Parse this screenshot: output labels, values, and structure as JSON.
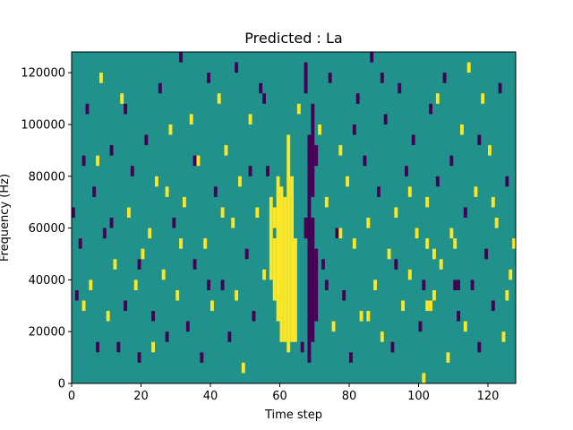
{
  "chart_data": {
    "type": "heatmap",
    "title": "Predicted : La",
    "xlabel": "Time step",
    "ylabel": "Frequency (Hz)",
    "xlim": [
      0,
      128
    ],
    "ylim": [
      0,
      128000
    ],
    "x_ticks": [
      0,
      20,
      40,
      60,
      80,
      100,
      120
    ],
    "x_tick_labels": [
      "0",
      "20",
      "40",
      "60",
      "80",
      "100",
      "120"
    ],
    "y_ticks": [
      0,
      20000,
      40000,
      60000,
      80000,
      100000,
      120000
    ],
    "y_tick_labels": [
      "0",
      "20000",
      "40000",
      "60000",
      "80000",
      "100000",
      "120000"
    ],
    "grid": false,
    "legend": "none",
    "colors": {
      "background": "#21918c",
      "high": "#fde725",
      "low": "#440154"
    },
    "columns": [
      {
        "t": 60,
        "level": "high",
        "runs": [
          [
            4,
            19
          ]
        ]
      },
      {
        "t": 61,
        "level": "high",
        "runs": [
          [
            4,
            18
          ]
        ]
      },
      {
        "t": 62,
        "level": "high",
        "runs": [
          [
            3,
            22
          ],
          [
            22,
            24
          ]
        ]
      },
      {
        "t": 63,
        "level": "high",
        "runs": [
          [
            4,
            20
          ]
        ]
      },
      {
        "t": 59,
        "level": "high",
        "runs": [
          [
            6,
            20
          ]
        ]
      },
      {
        "t": 58,
        "level": "high",
        "runs": [
          [
            8,
            14
          ],
          [
            15,
            17
          ]
        ]
      },
      {
        "t": 57,
        "level": "high",
        "runs": [
          [
            10,
            18
          ]
        ]
      },
      {
        "t": 64,
        "level": "high",
        "runs": [
          [
            4,
            14
          ]
        ]
      },
      {
        "t": 68,
        "level": "low",
        "runs": [
          [
            2,
            24
          ]
        ]
      },
      {
        "t": 69,
        "level": "low",
        "runs": [
          [
            4,
            16
          ],
          [
            18,
            27
          ]
        ]
      },
      {
        "t": 70,
        "level": "low",
        "runs": [
          [
            6,
            13
          ],
          [
            21,
            23
          ]
        ]
      },
      {
        "t": 67,
        "level": "low",
        "runs": [
          [
            14,
            16
          ],
          [
            28,
            31
          ]
        ]
      }
    ],
    "cells": [
      {
        "t": 1,
        "f": 8,
        "level": "low"
      },
      {
        "t": 2,
        "f": 13,
        "level": "low"
      },
      {
        "t": 3,
        "f": 21,
        "level": "low"
      },
      {
        "t": 4,
        "f": 26,
        "level": "low"
      },
      {
        "t": 5,
        "f": 9,
        "level": "high"
      },
      {
        "t": 6,
        "f": 18,
        "level": "low"
      },
      {
        "t": 7,
        "f": 3,
        "level": "low"
      },
      {
        "t": 8,
        "f": 29,
        "level": "high"
      },
      {
        "t": 9,
        "f": 14,
        "level": "low"
      },
      {
        "t": 10,
        "f": 6,
        "level": "high"
      },
      {
        "t": 11,
        "f": 22,
        "level": "low"
      },
      {
        "t": 12,
        "f": 11,
        "level": "high"
      },
      {
        "t": 13,
        "f": 3,
        "level": "low"
      },
      {
        "t": 14,
        "f": 27,
        "level": "high"
      },
      {
        "t": 15,
        "f": 7,
        "level": "low"
      },
      {
        "t": 16,
        "f": 16,
        "level": "high"
      },
      {
        "t": 17,
        "f": 20,
        "level": "low"
      },
      {
        "t": 18,
        "f": 9,
        "level": "high"
      },
      {
        "t": 19,
        "f": 2,
        "level": "low"
      },
      {
        "t": 20,
        "f": 12,
        "level": "high"
      },
      {
        "t": 21,
        "f": 23,
        "level": "low"
      },
      {
        "t": 22,
        "f": 14,
        "level": "high"
      },
      {
        "t": 23,
        "f": 6,
        "level": "low"
      },
      {
        "t": 24,
        "f": 19,
        "level": "high"
      },
      {
        "t": 25,
        "f": 28,
        "level": "low"
      },
      {
        "t": 26,
        "f": 10,
        "level": "high"
      },
      {
        "t": 27,
        "f": 4,
        "level": "low"
      },
      {
        "t": 28,
        "f": 24,
        "level": "high"
      },
      {
        "t": 29,
        "f": 15,
        "level": "low"
      },
      {
        "t": 30,
        "f": 8,
        "level": "high"
      },
      {
        "t": 31,
        "f": 31,
        "level": "low"
      },
      {
        "t": 32,
        "f": 17,
        "level": "high"
      },
      {
        "t": 33,
        "f": 5,
        "level": "low"
      },
      {
        "t": 34,
        "f": 25,
        "level": "high"
      },
      {
        "t": 35,
        "f": 11,
        "level": "low"
      },
      {
        "t": 36,
        "f": 21,
        "level": "high"
      },
      {
        "t": 37,
        "f": 2,
        "level": "low"
      },
      {
        "t": 38,
        "f": 13,
        "level": "high"
      },
      {
        "t": 39,
        "f": 29,
        "level": "low"
      },
      {
        "t": 40,
        "f": 7,
        "level": "high"
      },
      {
        "t": 41,
        "f": 18,
        "level": "low"
      },
      {
        "t": 42,
        "f": 27,
        "level": "high"
      },
      {
        "t": 43,
        "f": 9,
        "level": "low"
      },
      {
        "t": 44,
        "f": 22,
        "level": "high"
      },
      {
        "t": 45,
        "f": 4,
        "level": "low"
      },
      {
        "t": 46,
        "f": 15,
        "level": "high"
      },
      {
        "t": 47,
        "f": 30,
        "level": "low"
      },
      {
        "t": 48,
        "f": 19,
        "level": "high"
      },
      {
        "t": 49,
        "f": 1,
        "level": "high"
      },
      {
        "t": 50,
        "f": 12,
        "level": "low"
      },
      {
        "t": 51,
        "f": 25,
        "level": "high"
      },
      {
        "t": 52,
        "f": 6,
        "level": "low"
      },
      {
        "t": 53,
        "f": 16,
        "level": "high"
      },
      {
        "t": 54,
        "f": 28,
        "level": "low"
      },
      {
        "t": 55,
        "f": 10,
        "level": "high"
      },
      {
        "t": 56,
        "f": 20,
        "level": "low"
      },
      {
        "t": 65,
        "f": 26,
        "level": "high"
      },
      {
        "t": 66,
        "f": 3,
        "level": "low"
      },
      {
        "t": 71,
        "f": 24,
        "level": "high"
      },
      {
        "t": 72,
        "f": 11,
        "level": "low"
      },
      {
        "t": 73,
        "f": 17,
        "level": "high"
      },
      {
        "t": 74,
        "f": 29,
        "level": "low"
      },
      {
        "t": 75,
        "f": 5,
        "level": "high"
      },
      {
        "t": 76,
        "f": 14,
        "level": "low"
      },
      {
        "t": 77,
        "f": 22,
        "level": "high"
      },
      {
        "t": 78,
        "f": 8,
        "level": "low"
      },
      {
        "t": 79,
        "f": 19,
        "level": "high"
      },
      {
        "t": 80,
        "f": 2,
        "level": "low"
      },
      {
        "t": 81,
        "f": 13,
        "level": "high"
      },
      {
        "t": 82,
        "f": 27,
        "level": "low"
      },
      {
        "t": 83,
        "f": 6,
        "level": "high"
      },
      {
        "t": 84,
        "f": 21,
        "level": "low"
      },
      {
        "t": 85,
        "f": 15,
        "level": "high"
      },
      {
        "t": 86,
        "f": 31,
        "level": "low"
      },
      {
        "t": 87,
        "f": 9,
        "level": "high"
      },
      {
        "t": 88,
        "f": 18,
        "level": "low"
      },
      {
        "t": 89,
        "f": 4,
        "level": "high"
      },
      {
        "t": 90,
        "f": 25,
        "level": "low"
      },
      {
        "t": 91,
        "f": 12,
        "level": "high"
      },
      {
        "t": 92,
        "f": 3,
        "level": "low"
      },
      {
        "t": 93,
        "f": 16,
        "level": "high"
      },
      {
        "t": 94,
        "f": 28,
        "level": "low"
      },
      {
        "t": 95,
        "f": 7,
        "level": "high"
      },
      {
        "t": 96,
        "f": 20,
        "level": "low"
      },
      {
        "t": 97,
        "f": 10,
        "level": "high"
      },
      {
        "t": 98,
        "f": 23,
        "level": "low"
      },
      {
        "t": 99,
        "f": 14,
        "level": "high"
      },
      {
        "t": 100,
        "f": 5,
        "level": "low"
      },
      {
        "t": 101,
        "f": 0,
        "level": "high"
      },
      {
        "t": 102,
        "f": 17,
        "level": "high"
      },
      {
        "t": 103,
        "f": 26,
        "level": "low"
      },
      {
        "t": 104,
        "f": 8,
        "level": "high"
      },
      {
        "t": 105,
        "f": 19,
        "level": "low"
      },
      {
        "t": 106,
        "f": 11,
        "level": "high"
      },
      {
        "t": 107,
        "f": 29,
        "level": "low"
      },
      {
        "t": 108,
        "f": 2,
        "level": "high"
      },
      {
        "t": 109,
        "f": 21,
        "level": "low"
      },
      {
        "t": 110,
        "f": 13,
        "level": "high"
      },
      {
        "t": 111,
        "f": 6,
        "level": "low"
      },
      {
        "t": 112,
        "f": 24,
        "level": "high"
      },
      {
        "t": 113,
        "f": 16,
        "level": "low"
      },
      {
        "t": 114,
        "f": 30,
        "level": "high"
      },
      {
        "t": 115,
        "f": 9,
        "level": "low"
      },
      {
        "t": 116,
        "f": 18,
        "level": "high"
      },
      {
        "t": 117,
        "f": 3,
        "level": "low"
      },
      {
        "t": 118,
        "f": 27,
        "level": "high"
      },
      {
        "t": 119,
        "f": 12,
        "level": "low"
      },
      {
        "t": 120,
        "f": 22,
        "level": "high"
      },
      {
        "t": 121,
        "f": 7,
        "level": "low"
      },
      {
        "t": 122,
        "f": 15,
        "level": "high"
      },
      {
        "t": 123,
        "f": 28,
        "level": "low"
      },
      {
        "t": 124,
        "f": 4,
        "level": "high"
      },
      {
        "t": 125,
        "f": 19,
        "level": "low"
      },
      {
        "t": 126,
        "f": 10,
        "level": "high"
      },
      {
        "t": 127,
        "f": 13,
        "level": "high"
      },
      {
        "t": 0,
        "f": 16,
        "level": "low"
      },
      {
        "t": 3,
        "f": 7,
        "level": "high"
      },
      {
        "t": 7,
        "f": 21,
        "level": "high"
      },
      {
        "t": 11,
        "f": 15,
        "level": "low"
      },
      {
        "t": 15,
        "f": 26,
        "level": "low"
      },
      {
        "t": 19,
        "f": 11,
        "level": "low"
      },
      {
        "t": 23,
        "f": 3,
        "level": "high"
      },
      {
        "t": 27,
        "f": 18,
        "level": "high"
      },
      {
        "t": 31,
        "f": 13,
        "level": "high"
      },
      {
        "t": 35,
        "f": 21,
        "level": "low"
      },
      {
        "t": 39,
        "f": 9,
        "level": "low"
      },
      {
        "t": 43,
        "f": 16,
        "level": "high"
      },
      {
        "t": 47,
        "f": 8,
        "level": "high"
      },
      {
        "t": 51,
        "f": 20,
        "level": "low"
      },
      {
        "t": 55,
        "f": 27,
        "level": "low"
      },
      {
        "t": 73,
        "f": 9,
        "level": "low"
      },
      {
        "t": 77,
        "f": 14,
        "level": "high"
      },
      {
        "t": 81,
        "f": 24,
        "level": "low"
      },
      {
        "t": 85,
        "f": 6,
        "level": "high"
      },
      {
        "t": 89,
        "f": 29,
        "level": "low"
      },
      {
        "t": 93,
        "f": 11,
        "level": "low"
      },
      {
        "t": 97,
        "f": 18,
        "level": "high"
      },
      {
        "t": 101,
        "f": 9,
        "level": "low"
      },
      {
        "t": 105,
        "f": 27,
        "level": "high"
      },
      {
        "t": 109,
        "f": 14,
        "level": "high"
      },
      {
        "t": 113,
        "f": 5,
        "level": "high"
      },
      {
        "t": 117,
        "f": 23,
        "level": "low"
      },
      {
        "t": 121,
        "f": 17,
        "level": "high"
      },
      {
        "t": 125,
        "f": 8,
        "level": "high"
      },
      {
        "t": 102,
        "f": 7,
        "level": "high"
      },
      {
        "t": 103,
        "f": 7,
        "level": "high"
      },
      {
        "t": 104,
        "f": 12,
        "level": "high"
      },
      {
        "t": 102,
        "f": 13,
        "level": "high"
      },
      {
        "t": 110,
        "f": 9,
        "level": "low"
      },
      {
        "t": 111,
        "f": 9,
        "level": "low"
      }
    ]
  }
}
